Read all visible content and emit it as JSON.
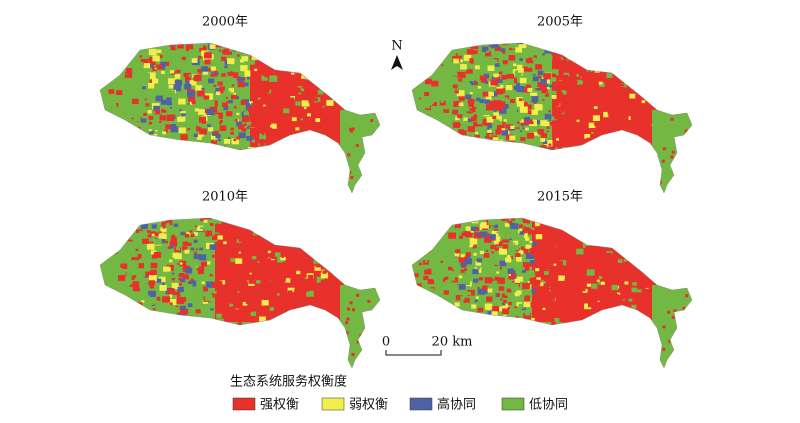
{
  "panels": [
    {
      "title": "2000年"
    },
    {
      "title": "2005年"
    },
    {
      "title": "2010年"
    },
    {
      "title": "2015年"
    }
  ],
  "north": "N",
  "scale_bar": {
    "labels": [
      "0",
      "20 km"
    ]
  },
  "legend": {
    "title": "生态系统服务权衡度",
    "items": [
      {
        "label": "强权衡",
        "color": "#e8312a"
      },
      {
        "label": "弱权衡",
        "color": "#f2ee4c"
      },
      {
        "label": "高协同",
        "color": "#4f62a8"
      },
      {
        "label": "低协同",
        "color": "#72b843"
      }
    ]
  }
}
